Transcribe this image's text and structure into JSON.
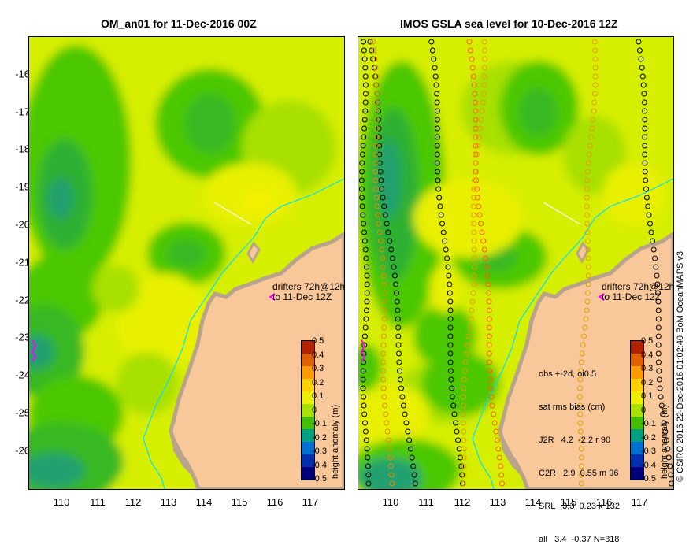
{
  "left_panel": {
    "title": "OM_an01 for 11-Dec-2016 00Z",
    "drifters_line1": "drifters 72h@12h",
    "drifters_line2": "to 11-Dec 12Z"
  },
  "right_panel": {
    "title": "IMOS GSLA sea level  for 10-Dec-2016 12Z",
    "drifters_line1": "drifters 72h@12h",
    "drifters_line2": "to 11-Dec 12Z",
    "stats": {
      "line1": "obs +-2d, oi0.5",
      "line2": "sat rms bias (cm)",
      "rows": [
        "J2R   4.2  -2.2 r 90",
        "C2R   2.9  0.55 m 96",
        "SRL   3.3  0.23 k 132",
        "all   3.4  -0.37 N=318"
      ]
    }
  },
  "latitude_labels": [
    "-16",
    "-17",
    "-18",
    "-19",
    "-20",
    "-21",
    "-22",
    "-23",
    "-24",
    "-25",
    "-26"
  ],
  "longitude_labels": [
    "110",
    "111",
    "112",
    "113",
    "114",
    "115",
    "116",
    "117"
  ],
  "colorbar": {
    "title": "height anomaly (m)",
    "tick_labels": [
      "0.5",
      "0.4",
      "0.3",
      "0.2",
      "0.1",
      "0",
      "-0.1",
      "-0.2",
      "-0.3",
      "-0.4",
      "-0.5"
    ],
    "colors": [
      "#b22200",
      "#e06000",
      "#ff9a00",
      "#ffd000",
      "#ecf000",
      "#a8e000",
      "#44c000",
      "#00a080",
      "#0070d0",
      "#0030b0",
      "#00007a"
    ]
  },
  "credit": "© CSIRO 2016   22-Dec-2016 01:02:40 BoM OceanMAPS v3",
  "colors": {
    "land": "#f9c89a",
    "coast": "#b8a48a",
    "drifter": "#ff00ff",
    "river": "#00e0ff"
  }
}
